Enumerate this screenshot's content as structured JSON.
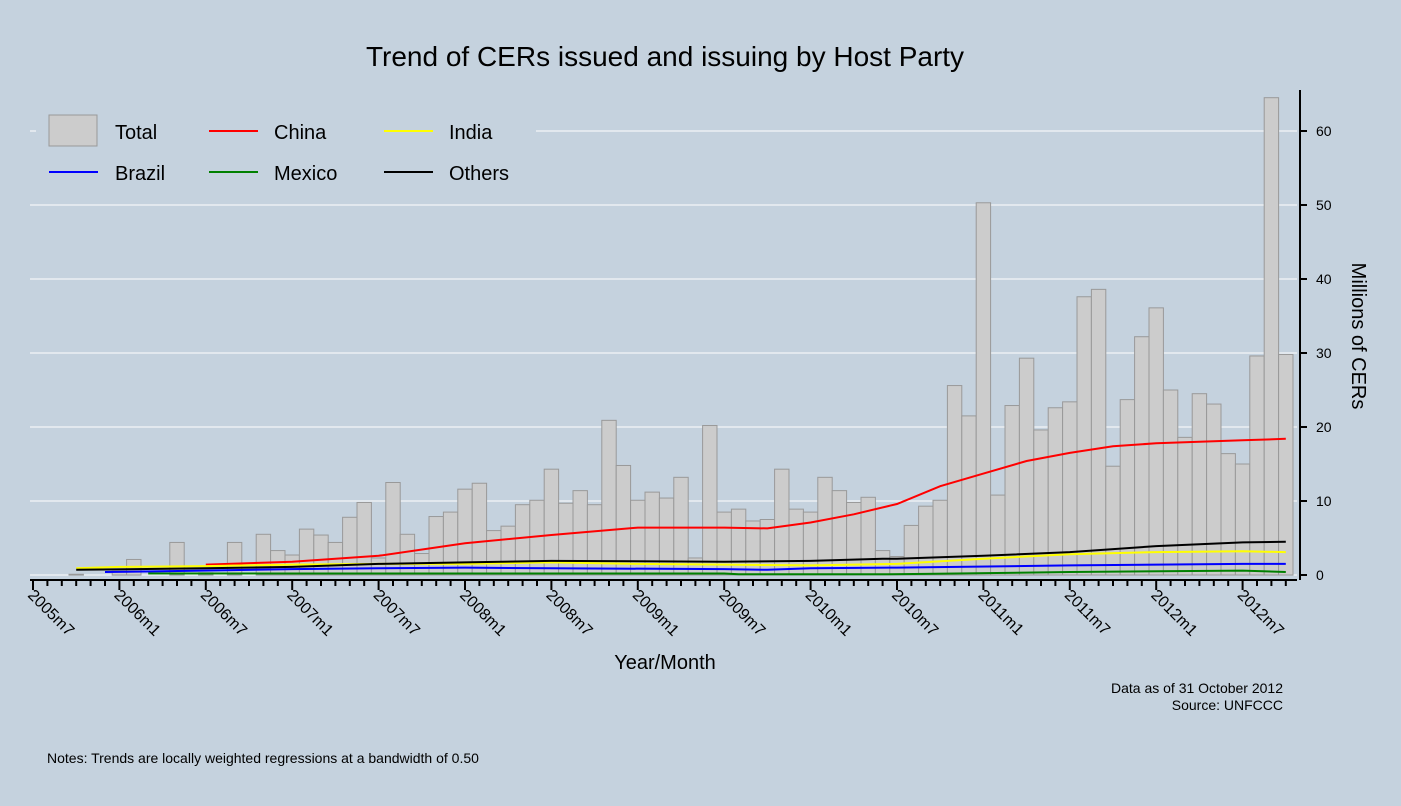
{
  "chart_data": {
    "type": "bar",
    "title": "Trend of CERs issued and issuing by Host Party",
    "xlabel": "Year/Month",
    "ylabel": "Millions of CERs",
    "ylim": [
      0,
      65
    ],
    "yticks": [
      0,
      10,
      20,
      30,
      40,
      50,
      60
    ],
    "y_axis_side": "right",
    "grid": true,
    "legend_position": "top-left",
    "xtick_labels": [
      "2005m7",
      "2006m1",
      "2006m7",
      "2007m1",
      "2007m7",
      "2008m1",
      "2008m7",
      "2009m1",
      "2009m7",
      "2010m1",
      "2010m7",
      "2011m1",
      "2011m7",
      "2012m1",
      "2012m7"
    ],
    "categories": [
      "2005m7",
      "2005m8",
      "2005m9",
      "2005m10",
      "2005m11",
      "2005m12",
      "2006m1",
      "2006m2",
      "2006m3",
      "2006m4",
      "2006m5",
      "2006m6",
      "2006m7",
      "2006m8",
      "2006m9",
      "2006m10",
      "2006m11",
      "2006m12",
      "2007m1",
      "2007m2",
      "2007m3",
      "2007m4",
      "2007m5",
      "2007m6",
      "2007m7",
      "2007m8",
      "2007m9",
      "2007m10",
      "2007m11",
      "2007m12",
      "2008m1",
      "2008m2",
      "2008m3",
      "2008m4",
      "2008m5",
      "2008m6",
      "2008m7",
      "2008m8",
      "2008m9",
      "2008m10",
      "2008m11",
      "2008m12",
      "2009m1",
      "2009m2",
      "2009m3",
      "2009m4",
      "2009m5",
      "2009m6",
      "2009m7",
      "2009m8",
      "2009m9",
      "2009m10",
      "2009m11",
      "2009m12",
      "2010m1",
      "2010m2",
      "2010m3",
      "2010m4",
      "2010m5",
      "2010m6",
      "2010m7",
      "2010m8",
      "2010m9",
      "2010m10",
      "2010m11",
      "2010m12",
      "2011m1",
      "2011m2",
      "2011m3",
      "2011m4",
      "2011m5",
      "2011m6",
      "2011m7",
      "2011m8",
      "2011m9",
      "2011m10",
      "2011m11",
      "2011m12",
      "2012m1",
      "2012m2",
      "2012m3",
      "2012m4",
      "2012m5",
      "2012m6",
      "2012m7",
      "2012m8",
      "2012m9",
      "2012m10"
    ],
    "bars": {
      "name": "Total",
      "color": "#cccccc",
      "values": [
        0,
        0,
        0,
        0.1,
        0,
        0,
        0.5,
        2.1,
        0,
        0,
        4.4,
        0,
        0.3,
        0,
        4.4,
        0,
        5.5,
        3.3,
        2.7,
        6.2,
        5.4,
        4.4,
        7.8,
        9.8,
        2.3,
        12.5,
        5.5,
        2.9,
        7.9,
        8.5,
        11.6,
        12.4,
        6.0,
        6.6,
        9.5,
        10.1,
        14.3,
        9.7,
        11.4,
        9.5,
        20.9,
        14.8,
        10.1,
        11.2,
        10.4,
        13.2,
        2.3,
        20.2,
        8.5,
        8.9,
        7.3,
        7.5,
        14.3,
        8.9,
        8.5,
        13.2,
        11.4,
        9.8,
        10.5,
        3.3,
        2.5,
        6.7,
        9.3,
        10.1,
        25.6,
        21.5,
        50.3,
        10.8,
        22.9,
        29.3,
        19.6,
        22.6,
        23.4,
        37.6,
        38.6,
        14.7,
        23.7,
        32.2,
        36.1,
        25.0,
        18.6,
        24.5,
        23.1,
        16.4,
        15.0,
        29.6,
        64.5,
        29.8
      ]
    },
    "series": [
      {
        "name": "China",
        "color": "#ff0000",
        "points": [
          [
            "2006m7",
            1.4
          ],
          [
            "2007m1",
            1.8
          ],
          [
            "2007m7",
            2.6
          ],
          [
            "2008m1",
            4.3
          ],
          [
            "2008m7",
            5.4
          ],
          [
            "2009m1",
            6.4
          ],
          [
            "2009m7",
            6.4
          ],
          [
            "2009m10",
            6.3
          ],
          [
            "2010m1",
            7.1
          ],
          [
            "2010m4",
            8.2
          ],
          [
            "2010m7",
            9.6
          ],
          [
            "2010m10",
            12.0
          ],
          [
            "2011m1",
            13.7
          ],
          [
            "2011m4",
            15.4
          ],
          [
            "2011m7",
            16.5
          ],
          [
            "2011m10",
            17.4
          ],
          [
            "2012m1",
            17.8
          ],
          [
            "2012m4",
            18.0
          ],
          [
            "2012m7",
            18.2
          ],
          [
            "2012m10",
            18.4
          ]
        ]
      },
      {
        "name": "India",
        "color": "#ffff00",
        "points": [
          [
            "2005m10",
            0.9
          ],
          [
            "2006m1",
            1.1
          ],
          [
            "2006m7",
            1.2
          ],
          [
            "2007m1",
            1.4
          ],
          [
            "2007m7",
            1.5
          ],
          [
            "2008m1",
            1.5
          ],
          [
            "2008m7",
            1.7
          ],
          [
            "2009m1",
            1.5
          ],
          [
            "2009m7",
            1.4
          ],
          [
            "2010m1",
            1.3
          ],
          [
            "2010m7",
            1.5
          ],
          [
            "2011m1",
            2.2
          ],
          [
            "2011m7",
            2.8
          ],
          [
            "2012m1",
            3.1
          ],
          [
            "2012m7",
            3.2
          ],
          [
            "2012m10",
            3.1
          ]
        ]
      },
      {
        "name": "Brazil",
        "color": "#0000ff",
        "points": [
          [
            "2005m12",
            0.4
          ],
          [
            "2006m4",
            0.5
          ],
          [
            "2007m1",
            0.8
          ],
          [
            "2007m7",
            0.9
          ],
          [
            "2008m1",
            1.0
          ],
          [
            "2008m7",
            0.9
          ],
          [
            "2009m7",
            0.8
          ],
          [
            "2009m10",
            0.7
          ],
          [
            "2010m1",
            0.9
          ],
          [
            "2010m7",
            1.0
          ],
          [
            "2011m7",
            1.3
          ],
          [
            "2012m7",
            1.5
          ],
          [
            "2012m10",
            1.5
          ]
        ]
      },
      {
        "name": "Mexico",
        "color": "#008000",
        "points": [
          [
            "2006m3",
            0.2
          ],
          [
            "2009m7",
            0.2
          ],
          [
            "2009m8",
            0.1
          ],
          [
            "2010m6",
            0.1
          ],
          [
            "2010m9",
            0.15
          ],
          [
            "2011m7",
            0.4
          ],
          [
            "2012m7",
            0.6
          ],
          [
            "2012m10",
            0.4
          ]
        ]
      },
      {
        "name": "Others",
        "color": "#000000",
        "points": [
          [
            "2005m10",
            0.7
          ],
          [
            "2006m7",
            0.9
          ],
          [
            "2007m1",
            1.1
          ],
          [
            "2007m7",
            1.5
          ],
          [
            "2008m1",
            1.7
          ],
          [
            "2008m7",
            1.9
          ],
          [
            "2009m7",
            1.8
          ],
          [
            "2010m1",
            1.9
          ],
          [
            "2010m6",
            2.2
          ],
          [
            "2010m7",
            2.2
          ],
          [
            "2011m1",
            2.6
          ],
          [
            "2011m7",
            3.1
          ],
          [
            "2012m1",
            3.9
          ],
          [
            "2012m7",
            4.4
          ],
          [
            "2012m10",
            4.5
          ]
        ]
      }
    ],
    "annotations": {
      "data_as_of": "Data as of 31 October 2012",
      "source": "Source: UNFCCC",
      "notes": "Notes: Trends are locally weighted regressions at a bandwidth of 0.50"
    }
  }
}
